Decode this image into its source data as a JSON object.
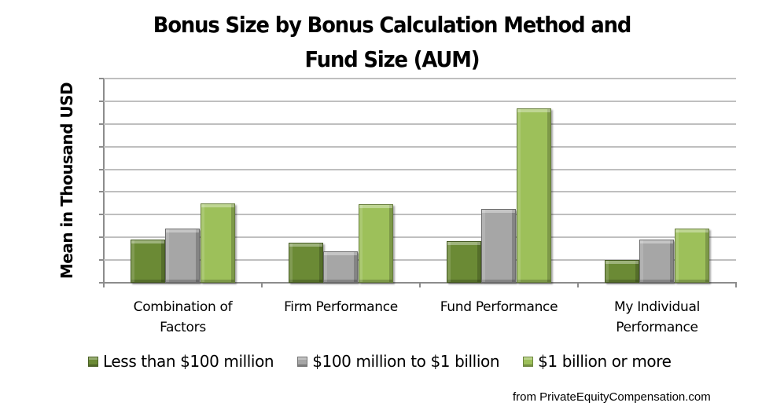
{
  "title_line1": "Bonus Size by Bonus Calculation Method and",
  "title_line2": "Fund Size (AUM)",
  "source": "from PrivateEquityCompensation.com",
  "colors": {
    "less_than_100m": "#6b8a35",
    "100m_to_1b": "#a6a6a6",
    "1b_or_more": "#9dc05a",
    "grid": "#bfbfbf",
    "axis": "#8c8c8c"
  },
  "chart_data": {
    "type": "bar",
    "title": "Bonus Size by Bonus Calculation Method and Fund Size (AUM)",
    "xlabel": "",
    "ylabel": "Mean in Thousand USD",
    "y_tick_labels_shown": false,
    "y_units_note": "Y-axis has no numeric tick labels; values below are in gridline units (9 gridlines above baseline)",
    "ylim": [
      0,
      9
    ],
    "grid": true,
    "legend_position": "bottom",
    "categories": [
      "Combination of Factors",
      "Firm Performance",
      "Fund Performance",
      "My Individual Performance"
    ],
    "category_display": [
      [
        "Combination of",
        "Factors"
      ],
      [
        "Firm Performance"
      ],
      [
        "Fund Performance"
      ],
      [
        "My Individual",
        "Performance"
      ]
    ],
    "series": [
      {
        "name": "Less than $100 million",
        "color": "#6b8a35",
        "values": [
          1.9,
          1.75,
          1.85,
          1.0
        ]
      },
      {
        "name": "$100 million to $1 billion",
        "color": "#a6a6a6",
        "values": [
          2.4,
          1.4,
          3.25,
          1.9
        ]
      },
      {
        "name": "$1 billion or more",
        "color": "#9dc05a",
        "values": [
          3.5,
          3.45,
          7.7,
          2.4
        ]
      }
    ]
  }
}
